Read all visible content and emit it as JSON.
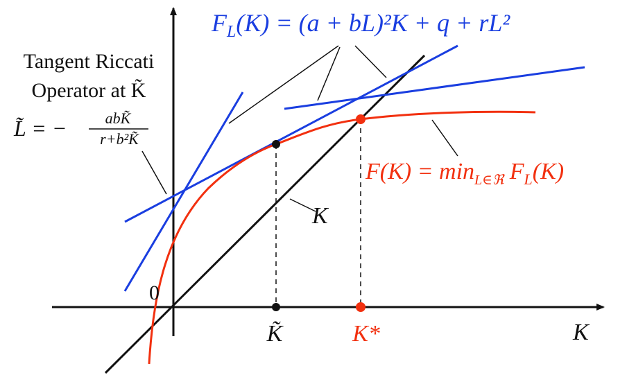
{
  "formula_top": {
    "main": "F",
    "sub": "L",
    "rest": "(K) = (a + bL)²K + q + rL²"
  },
  "tangent_label": {
    "line1": "Tangent Riccati",
    "line2": "Operator at K̃",
    "lhs": "L̃ = −",
    "numerator": "abK̃",
    "denominator": "r+b²K̃"
  },
  "origin_label": "0",
  "diagonal_label": "K",
  "x_axis_label": "K",
  "k_tilde_label": "K̃",
  "k_star_label": "K*",
  "min_label": {
    "main": "F(K) = min",
    "sub": "L∈ℜ",
    "rest": " F",
    "sub2": "L",
    "rest2": "(K)"
  }
}
